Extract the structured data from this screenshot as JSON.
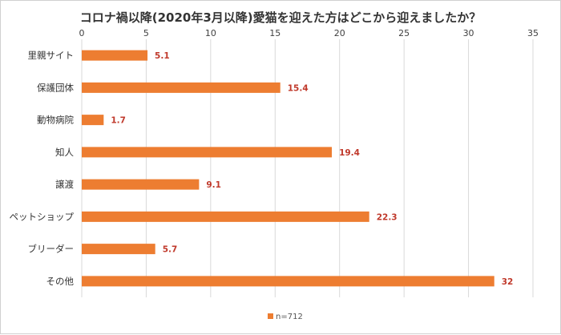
{
  "chart_data": {
    "type": "bar",
    "orientation": "horizontal",
    "title": "コロナ禍以降(2020年3月以降)愛猫を迎えた方はどこから迎えましたか？",
    "categories": [
      "里親サイト",
      "保護団体",
      "動物病院",
      "知人",
      "譲渡",
      "ペットショップ",
      "ブリーダー",
      "その他"
    ],
    "series": [
      {
        "name": "n=712",
        "values": [
          5.1,
          15.4,
          1.7,
          19.4,
          9.1,
          22.3,
          5.7,
          32
        ]
      }
    ],
    "data_labels": [
      "5.1",
      "15.4",
      "1.7",
      "19.4",
      "9.1",
      "22.3",
      "5.7",
      "32"
    ],
    "xlim": [
      0,
      35
    ],
    "ticks": [
      0,
      5,
      10,
      15,
      20,
      25,
      30,
      35
    ],
    "tick_labels": [
      "0",
      "5",
      "10",
      "15",
      "20",
      "25",
      "30",
      "35"
    ],
    "grid": true,
    "legend_position": "bottom",
    "colors": {
      "bar": "#ed7d31",
      "data_label": "#c0392b",
      "grid": "#d9d9d9"
    }
  }
}
